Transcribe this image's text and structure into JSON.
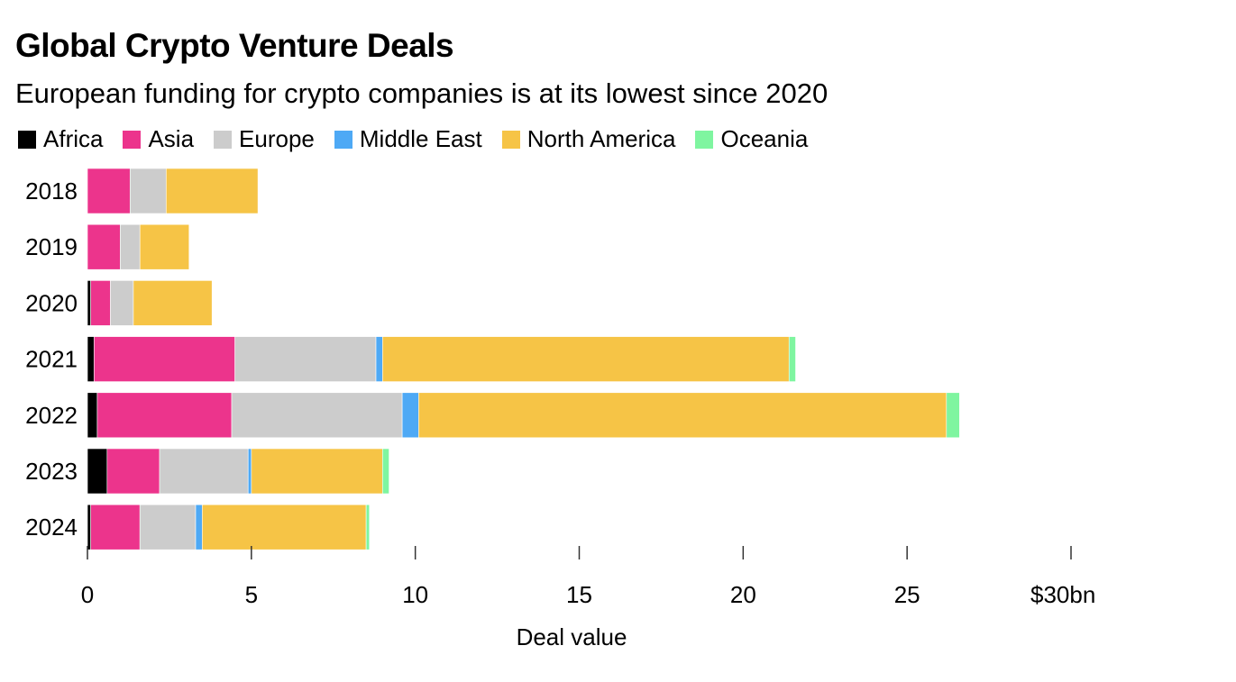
{
  "chart_data": {
    "type": "bar",
    "orientation": "horizontal",
    "stacked": true,
    "title": "Global Crypto Venture Deals",
    "subtitle": "European funding for crypto companies is at its lowest since 2020",
    "xlabel": "Deal value",
    "ylabel": "",
    "xlim": [
      0,
      30
    ],
    "x_ticks": [
      0,
      5,
      10,
      15,
      20,
      25,
      30
    ],
    "x_tick_labels": [
      "0",
      "5",
      "10",
      "15",
      "20",
      "25",
      "$30bn"
    ],
    "grid": false,
    "legend_placement": "top-left",
    "categories": [
      "2018",
      "2019",
      "2020",
      "2021",
      "2022",
      "2023",
      "2024"
    ],
    "series": [
      {
        "name": "Africa",
        "color": "#000000",
        "values": [
          0,
          0,
          0.1,
          0.2,
          0.3,
          0.6,
          0.1
        ]
      },
      {
        "name": "Asia",
        "color": "#ec348c",
        "values": [
          1.3,
          1.0,
          0.6,
          4.3,
          4.1,
          1.6,
          1.5
        ]
      },
      {
        "name": "Europe",
        "color": "#cccccc",
        "values": [
          1.1,
          0.6,
          0.7,
          4.3,
          5.2,
          2.7,
          1.7
        ]
      },
      {
        "name": "Middle East",
        "color": "#4ea9f5",
        "values": [
          0,
          0,
          0,
          0.2,
          0.5,
          0.1,
          0.2
        ]
      },
      {
        "name": "North America",
        "color": "#f6c446",
        "values": [
          2.8,
          1.5,
          2.4,
          12.4,
          16.1,
          4.0,
          5.0
        ]
      },
      {
        "name": "Oceania",
        "color": "#7ff5a0",
        "values": [
          0,
          0,
          0,
          0.2,
          0.4,
          0.2,
          0.1
        ]
      }
    ]
  }
}
